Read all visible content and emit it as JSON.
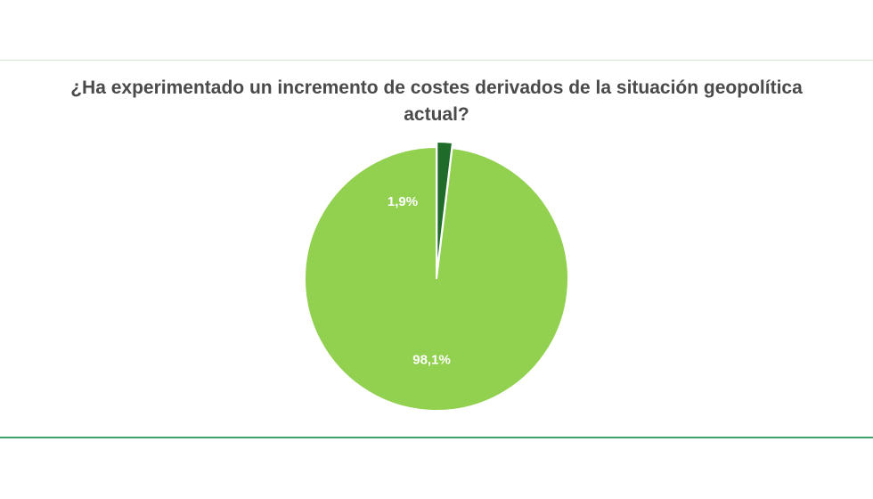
{
  "chart_data": {
    "type": "pie",
    "title": "¿Ha experimentado un incremento de costes derivados de la situación geopolítica actual?",
    "slices": [
      {
        "value": 98.1,
        "label": "98,1%",
        "color": "#92d050"
      },
      {
        "value": 1.9,
        "label": "1,9%",
        "color": "#1e6b2a"
      }
    ],
    "legend": "none",
    "border_color": "#ffffff"
  }
}
